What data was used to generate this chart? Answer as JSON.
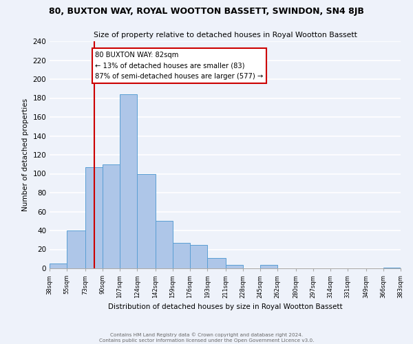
{
  "title": "80, BUXTON WAY, ROYAL WOOTTON BASSETT, SWINDON, SN4 8JB",
  "subtitle": "Size of property relative to detached houses in Royal Wootton Bassett",
  "xlabel": "Distribution of detached houses by size in Royal Wootton Bassett",
  "ylabel": "Number of detached properties",
  "bar_edges": [
    38,
    55,
    73,
    90,
    107,
    124,
    142,
    159,
    176,
    193,
    211,
    228,
    245,
    262,
    280,
    297,
    314,
    331,
    349,
    366,
    383
  ],
  "bar_heights": [
    5,
    40,
    107,
    110,
    184,
    100,
    50,
    27,
    25,
    11,
    4,
    0,
    4,
    0,
    0,
    0,
    0,
    0,
    0,
    1
  ],
  "bar_color": "#aec6e8",
  "bar_edge_color": "#5a9fd4",
  "property_line_x": 82,
  "property_line_color": "#cc0000",
  "annotation_line1": "80 BUXTON WAY: 82sqm",
  "annotation_line2": "← 13% of detached houses are smaller (83)",
  "annotation_line3": "87% of semi-detached houses are larger (577) →",
  "ylim": [
    0,
    240
  ],
  "yticks": [
    0,
    20,
    40,
    60,
    80,
    100,
    120,
    140,
    160,
    180,
    200,
    220,
    240
  ],
  "tick_labels": [
    "38sqm",
    "55sqm",
    "73sqm",
    "90sqm",
    "107sqm",
    "124sqm",
    "142sqm",
    "159sqm",
    "176sqm",
    "193sqm",
    "211sqm",
    "228sqm",
    "245sqm",
    "262sqm",
    "280sqm",
    "297sqm",
    "314sqm",
    "331sqm",
    "349sqm",
    "366sqm",
    "383sqm"
  ],
  "footer_text": "Contains HM Land Registry data © Crown copyright and database right 2024.\nContains public sector information licensed under the Open Government Licence v3.0.",
  "bg_color": "#eef2fa",
  "grid_color": "#ffffff"
}
